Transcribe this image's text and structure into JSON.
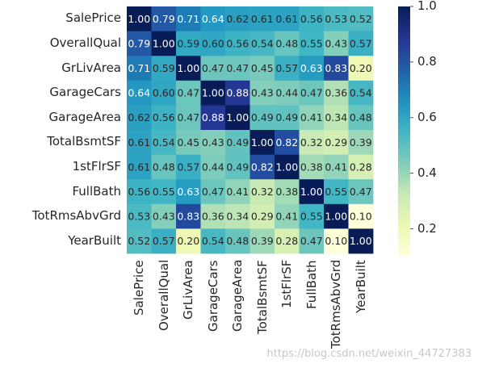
{
  "chart_data": {
    "type": "heatmap",
    "title": "",
    "colormap": "YlGnBu",
    "vmin": 0.1,
    "vmax": 1.0,
    "annotate": true,
    "annotation_format": "0.00",
    "row_labels": [
      "SalePrice",
      "OverallQual",
      "GrLivArea",
      "GarageCars",
      "GarageArea",
      "TotalBsmtSF",
      "1stFlrSF",
      "FullBath",
      "TotRmsAbvGrd",
      "YearBuilt"
    ],
    "col_labels": [
      "SalePrice",
      "OverallQual",
      "GrLivArea",
      "GarageCars",
      "GarageArea",
      "TotalBsmtSF",
      "1stFlrSF",
      "FullBath",
      "TotRmsAbvGrd",
      "YearBuilt"
    ],
    "values": [
      [
        1.0,
        0.79,
        0.71,
        0.64,
        0.62,
        0.61,
        0.61,
        0.56,
        0.53,
        0.52
      ],
      [
        0.79,
        1.0,
        0.59,
        0.6,
        0.56,
        0.54,
        0.48,
        0.55,
        0.43,
        0.57
      ],
      [
        0.71,
        0.59,
        1.0,
        0.47,
        0.47,
        0.45,
        0.57,
        0.63,
        0.83,
        0.2
      ],
      [
        0.64,
        0.6,
        0.47,
        1.0,
        0.88,
        0.43,
        0.44,
        0.47,
        0.36,
        0.54
      ],
      [
        0.62,
        0.56,
        0.47,
        0.88,
        1.0,
        0.49,
        0.49,
        0.41,
        0.34,
        0.48
      ],
      [
        0.61,
        0.54,
        0.45,
        0.43,
        0.49,
        1.0,
        0.82,
        0.32,
        0.29,
        0.39
      ],
      [
        0.61,
        0.48,
        0.57,
        0.44,
        0.49,
        0.82,
        1.0,
        0.38,
        0.41,
        0.28
      ],
      [
        0.56,
        0.55,
        0.63,
        0.47,
        0.41,
        0.32,
        0.38,
        1.0,
        0.55,
        0.47
      ],
      [
        0.53,
        0.43,
        0.83,
        0.36,
        0.34,
        0.29,
        0.41,
        0.55,
        1.0,
        0.1
      ],
      [
        0.52,
        0.57,
        0.2,
        0.54,
        0.48,
        0.39,
        0.28,
        0.47,
        0.1,
        1.0
      ]
    ],
    "colorbar": {
      "ticks": [
        0.2,
        0.4,
        0.6,
        0.8,
        1.0
      ],
      "tick_labels": [
        "0.2",
        "0.4",
        "0.6",
        "0.8",
        "1.0"
      ]
    }
  },
  "watermark": "https://blog.csdn.net/weixin_44727383"
}
